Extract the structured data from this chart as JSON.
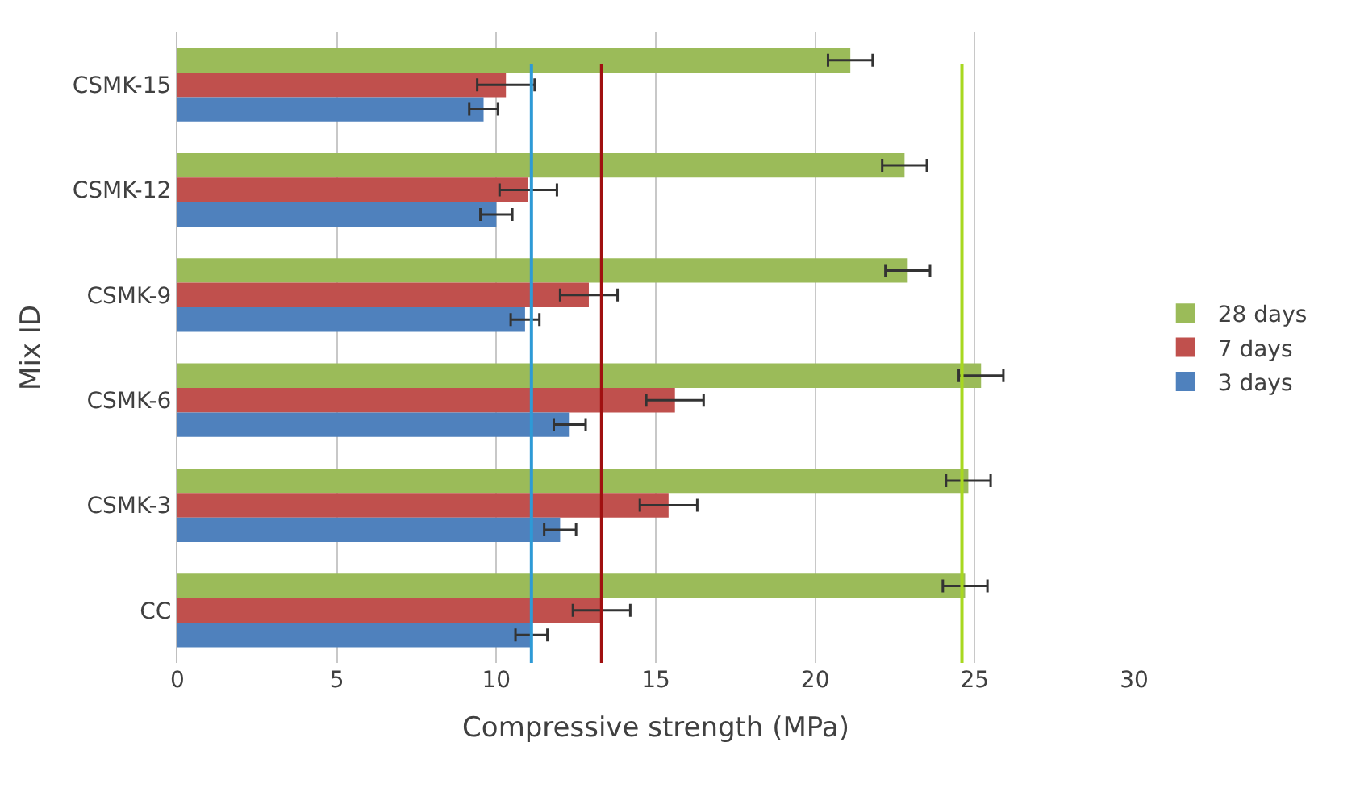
{
  "chart_data": {
    "type": "bar",
    "orientation": "horizontal",
    "xlabel": "Compressive strength (MPa)",
    "ylabel": "Mix ID",
    "categories": [
      "CSMK-15",
      "CSMK-12",
      "CSMK-9",
      "CSMK-6",
      "CSMK-3",
      "CC"
    ],
    "series": [
      {
        "name": "28 days",
        "color": "#9bbb59",
        "values": [
          21.1,
          22.8,
          22.9,
          25.2,
          24.8,
          24.7
        ],
        "errors": [
          0.7,
          0.7,
          0.7,
          0.7,
          0.7,
          0.7
        ]
      },
      {
        "name": "7 days",
        "color": "#c0504d",
        "values": [
          10.3,
          11.0,
          12.9,
          15.6,
          15.4,
          13.3
        ],
        "errors": [
          0.9,
          0.9,
          0.9,
          0.9,
          0.9,
          0.9
        ]
      },
      {
        "name": "3 days",
        "color": "#4f81bd",
        "values": [
          9.6,
          10.0,
          10.9,
          12.3,
          12.0,
          11.1
        ],
        "errors": [
          0.45,
          0.5,
          0.45,
          0.5,
          0.5,
          0.5
        ]
      }
    ],
    "ref_lines": [
      {
        "axis": "x",
        "value": 11.1,
        "color": "#2e9ad6"
      },
      {
        "axis": "x",
        "value": 13.3,
        "color": "#a01010"
      },
      {
        "axis": "x",
        "value": 24.6,
        "color": "#a8d820"
      }
    ],
    "xlim": [
      0,
      30
    ],
    "xticks": [
      0,
      5,
      10,
      15,
      20,
      25,
      30
    ],
    "grid": "x",
    "legend": "right"
  }
}
